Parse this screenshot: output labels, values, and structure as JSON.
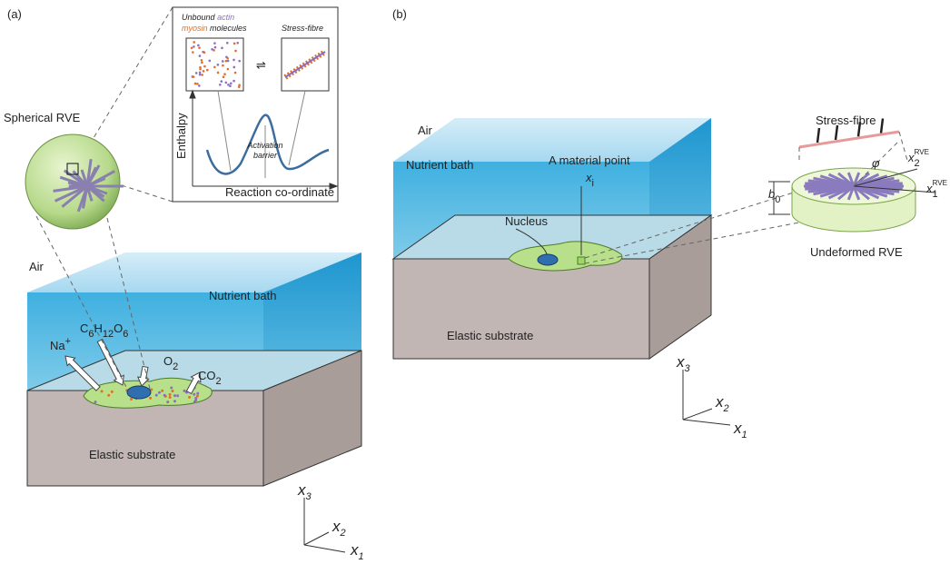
{
  "panel_a": {
    "label": "(a)",
    "spherical_rve": "Spherical RVE",
    "inset": {
      "unbound": "Unbound",
      "actin": "actin",
      "myosin": "myosin",
      "molecules": "molecules",
      "stress_fibre": "Stress-fibre",
      "equilibrium": "⇌",
      "y_axis": "Enthalpy",
      "barrier": [
        "Activation",
        "barrier"
      ],
      "x_axis": "Reaction co-ordinate"
    },
    "air": "Air",
    "bath": "Nutrient bath",
    "substrate": "Elastic substrate",
    "species": {
      "sodium": {
        "base": "Na",
        "sup": "+"
      },
      "glucose": [
        [
          "C",
          "6"
        ],
        [
          "H",
          "12"
        ],
        [
          "O",
          "6"
        ]
      ],
      "oxygen": [
        "O",
        "2"
      ],
      "carbon_dioxide": [
        "CO",
        "2"
      ]
    },
    "axes": {
      "x3": [
        "x",
        "3"
      ],
      "x2": [
        "x",
        "2"
      ],
      "x1": [
        "x",
        "1"
      ]
    }
  },
  "panel_b": {
    "label": "(b)",
    "air": "Air",
    "bath": "Nutrient bath",
    "substrate": "Elastic substrate",
    "material_point": {
      "text": "A material point",
      "symbol": [
        "x",
        "i"
      ]
    },
    "nucleus": "Nucleus",
    "stress_fibre": "Stress-fibre",
    "rve_x2": [
      "x",
      "2",
      "RVE"
    ],
    "rve_x1": [
      "x",
      "1",
      "RVE"
    ],
    "angle": "φ",
    "thickness": [
      "b",
      "0"
    ],
    "undeformed_rve": "Undeformed RVE",
    "axes": {
      "x3": [
        "x",
        "3"
      ],
      "x2": [
        "x",
        "2"
      ],
      "x1": [
        "x",
        "1"
      ]
    }
  }
}
